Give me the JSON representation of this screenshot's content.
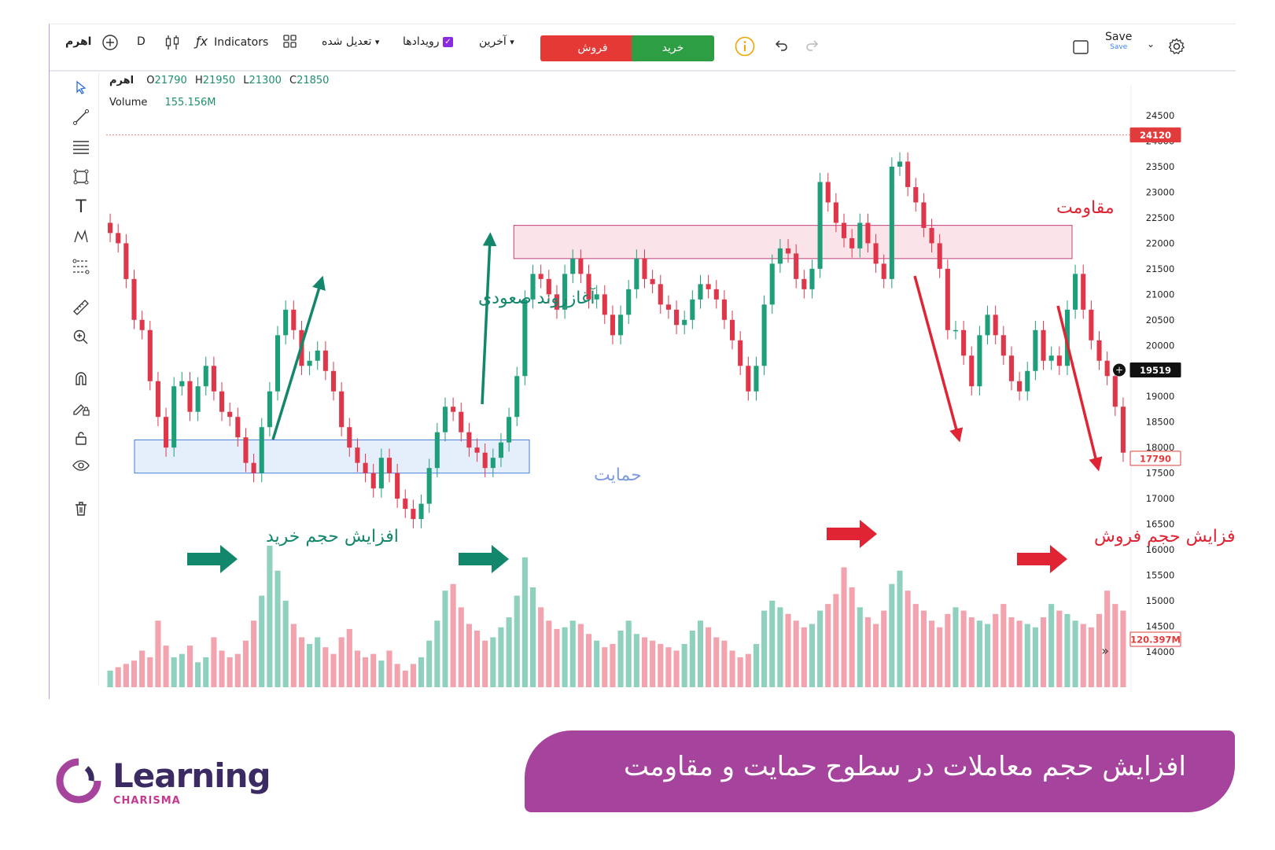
{
  "toolbar": {
    "symbol": "اهرم",
    "interval": "D",
    "indicators_label": "Indicators",
    "adjusted_label": "تعدیل شده",
    "events_label": "رویدادها",
    "latest_label": "آخرین",
    "sell_label": "فروش",
    "buy_label": "خرید",
    "save_label": "Save",
    "save_sub": "Save",
    "colors": {
      "sell": "#e53935",
      "buy": "#2e9e44",
      "events_check": "#8a2be2",
      "info": "#f0a500"
    }
  },
  "legend": {
    "symbol": "اهرم",
    "o_label": "O",
    "o": "21790",
    "h_label": "H",
    "h": "21950",
    "l_label": "L",
    "l": "21300",
    "c_label": "C",
    "c": "21850",
    "volume_label": "Volume",
    "volume_value": "155.156M"
  },
  "price_axis": {
    "ticks": [
      "24500",
      "24000",
      "23500",
      "23000",
      "22500",
      "22000",
      "21500",
      "21000",
      "20500",
      "20000",
      "19500",
      "19000",
      "18500",
      "18000",
      "17500",
      "17000",
      "16500",
      "16000",
      "15500",
      "15000",
      "14500",
      "14000"
    ],
    "marker_high": "24120",
    "marker_current": "19519",
    "marker_low": "17790",
    "marker_volume": "120.397M"
  },
  "annotations": {
    "resistance": "مقاومت",
    "support": "حمایت",
    "uptrend_start": "آغازروند صعودی",
    "buy_volume": "افزایش حجم خرید",
    "sell_volume": "افزایش حجم فروش",
    "colors": {
      "green": "#12876b",
      "red": "#e02433",
      "blue": "#7d9de0",
      "resistance_zone": "#fbe3ea",
      "support_zone": "#e5effc"
    }
  },
  "banner": {
    "text": "افزایش حجم معاملات در سطوح حمایت و مقاومت"
  },
  "logo": {
    "name": "Learning",
    "sub": "CHARISMA"
  },
  "chart_data": {
    "type": "candlestick",
    "symbol": "اهرم",
    "y_unit": "price",
    "ylim": [
      13800,
      24700
    ],
    "support_zone": [
      17500,
      18150
    ],
    "resistance_zone": [
      21700,
      22350
    ],
    "close": [
      22200,
      22000,
      21300,
      20500,
      20300,
      19300,
      18600,
      18000,
      19200,
      19300,
      18700,
      19200,
      19600,
      19100,
      18700,
      18600,
      18200,
      17700,
      17500,
      18400,
      19100,
      20200,
      20700,
      20300,
      19600,
      19700,
      19900,
      19500,
      19100,
      18400,
      18000,
      17700,
      17500,
      17200,
      17800,
      17500,
      17000,
      16800,
      16600,
      16900,
      17600,
      18300,
      18800,
      18700,
      18300,
      18000,
      17900,
      17600,
      17800,
      18100,
      18600,
      19400,
      20900,
      21400,
      21300,
      21000,
      20700,
      21400,
      21700,
      21400,
      20900,
      21000,
      20600,
      20200,
      20600,
      21100,
      21700,
      21300,
      21200,
      20800,
      20700,
      20400,
      20500,
      20900,
      21200,
      21100,
      20900,
      20500,
      20100,
      19600,
      19100,
      19600,
      20800,
      21600,
      21900,
      21800,
      21300,
      21100,
      21500,
      23200,
      22800,
      22400,
      22100,
      21900,
      22400,
      22000,
      21600,
      21300,
      23500,
      23600,
      23100,
      22800,
      22300,
      22000,
      21500,
      20300,
      20300,
      19800,
      19200,
      20200,
      20600,
      20200,
      19800,
      19300,
      19100,
      19500,
      20300,
      19700,
      19800,
      19600,
      20700,
      21400,
      20700,
      20100,
      19700,
      19400,
      18800,
      17900
    ],
    "volume_unit": "M",
    "volume_values": [
      10,
      12,
      14,
      16,
      22,
      18,
      40,
      25,
      18,
      20,
      25,
      15,
      18,
      30,
      22,
      18,
      20,
      28,
      40,
      55,
      85,
      70,
      52,
      38,
      30,
      26,
      30,
      24,
      20,
      30,
      35,
      22,
      18,
      20,
      16,
      22,
      14,
      10,
      14,
      18,
      28,
      40,
      58,
      62,
      48,
      38,
      34,
      28,
      30,
      36,
      42,
      55,
      78,
      60,
      48,
      40,
      35,
      36,
      40,
      38,
      32,
      28,
      24,
      26,
      34,
      40,
      32,
      30,
      28,
      26,
      24,
      22,
      26,
      34,
      40,
      36,
      30,
      28,
      22,
      18,
      20,
      26,
      46,
      52,
      48,
      44,
      40,
      36,
      38,
      46,
      50,
      56,
      72,
      60,
      48,
      42,
      38,
      46,
      62,
      70,
      58,
      50,
      46,
      40,
      36,
      44,
      48,
      46,
      42,
      40,
      38,
      44,
      50,
      42,
      40,
      38,
      36,
      42,
      50,
      46,
      44,
      40,
      38,
      36,
      44,
      58,
      50,
      46
    ]
  }
}
